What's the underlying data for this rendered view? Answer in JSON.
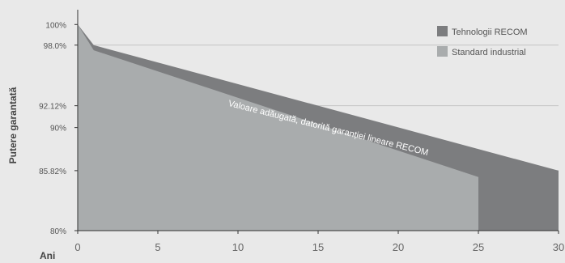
{
  "chart_data": {
    "type": "area",
    "ylabel": "Putere garantată",
    "xlabel": "Ani",
    "xlim": [
      0,
      30
    ],
    "ylim": [
      80,
      101.2
    ],
    "x_ticks": [
      0,
      5,
      10,
      15,
      20,
      25,
      30
    ],
    "y_ticks": [
      {
        "value": 100,
        "label": "100%"
      },
      {
        "value": 98.0,
        "label": "98.0%"
      },
      {
        "value": 92.12,
        "label": "92.12%"
      },
      {
        "value": 90,
        "label": "90%"
      },
      {
        "value": 85.82,
        "label": "85.82%"
      },
      {
        "value": 80,
        "label": "80%"
      }
    ],
    "gridlines_at": [
      98.0,
      92.12,
      85.82
    ],
    "legend_position": "top-right",
    "series": [
      {
        "name": "Tehnologii RECOM",
        "color": "#7c7d7f",
        "points": [
          [
            0,
            100
          ],
          [
            1,
            98.0
          ],
          [
            30,
            85.82
          ],
          [
            30,
            80
          ]
        ]
      },
      {
        "name": "Standard industrial",
        "color": "#a9acad",
        "points": [
          [
            0,
            100
          ],
          [
            1,
            97.5
          ],
          [
            25,
            85.2
          ],
          [
            25,
            80
          ]
        ]
      }
    ],
    "annotation": {
      "text": "Valoare adăugată, datorită garanției lineare RECOM",
      "x": 15.6,
      "y": 89.7
    }
  }
}
